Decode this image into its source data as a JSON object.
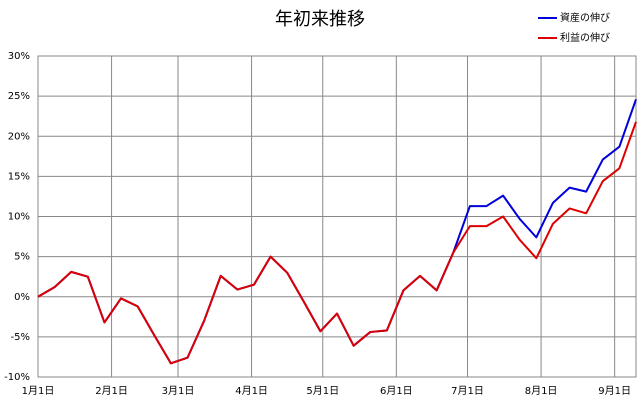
{
  "chart_data": {
    "type": "line",
    "title": "年初来推移",
    "x": [
      0,
      7,
      14,
      21,
      28,
      35,
      42,
      49,
      56,
      63,
      70,
      77,
      84,
      91,
      98,
      105,
      112,
      119,
      126,
      133,
      140,
      147,
      154,
      161,
      168,
      175,
      182,
      189,
      196,
      203,
      210,
      217,
      224,
      231,
      238,
      245,
      252
    ],
    "xlim": [
      0,
      252
    ],
    "xticks": [
      {
        "value": 0,
        "label": "1月1日"
      },
      {
        "value": 31,
        "label": "2月1日"
      },
      {
        "value": 59,
        "label": "3月1日"
      },
      {
        "value": 90,
        "label": "4月1日"
      },
      {
        "value": 120,
        "label": "5月1日"
      },
      {
        "value": 151,
        "label": "6月1日"
      },
      {
        "value": 181,
        "label": "7月1日"
      },
      {
        "value": 212,
        "label": "8月1日"
      },
      {
        "value": 243,
        "label": "9月1日"
      }
    ],
    "ylim": [
      -10,
      30
    ],
    "yticks": [
      {
        "value": -10,
        "label": "-10%"
      },
      {
        "value": -5,
        "label": "-5%"
      },
      {
        "value": 0,
        "label": "0%"
      },
      {
        "value": 5,
        "label": "5%"
      },
      {
        "value": 10,
        "label": "10%"
      },
      {
        "value": 15,
        "label": "15%"
      },
      {
        "value": 20,
        "label": "20%"
      },
      {
        "value": 25,
        "label": "25%"
      },
      {
        "value": 30,
        "label": "30%"
      }
    ],
    "grid": true,
    "legend": "top-right",
    "series": [
      {
        "name": "資産の伸び",
        "color": "#0000dd",
        "values": [
          0,
          1.2,
          3.1,
          2.5,
          -3.2,
          -0.2,
          -1.2,
          -4.8,
          -8.3,
          -7.6,
          -3,
          2.6,
          0.9,
          1.5,
          5,
          3,
          -0.6,
          -4.3,
          -2.1,
          -6.1,
          -4.4,
          -4.2,
          0.8,
          2.6,
          0.8,
          5.5,
          11.3,
          11.3,
          12.6,
          9.7,
          7.4,
          11.7,
          13.6,
          13.1,
          17.1,
          18.7,
          24.6
        ]
      },
      {
        "name": "利益の伸び",
        "color": "#dd0000",
        "values": [
          0,
          1.2,
          3.1,
          2.5,
          -3.2,
          -0.2,
          -1.2,
          -4.8,
          -8.3,
          -7.6,
          -3,
          2.6,
          0.9,
          1.5,
          5,
          3,
          -0.6,
          -4.3,
          -2.1,
          -6.1,
          -4.4,
          -4.2,
          0.8,
          2.6,
          0.8,
          5.5,
          8.8,
          8.8,
          10,
          7.1,
          4.8,
          9.1,
          11,
          10.4,
          14.4,
          16,
          21.8
        ]
      }
    ]
  }
}
